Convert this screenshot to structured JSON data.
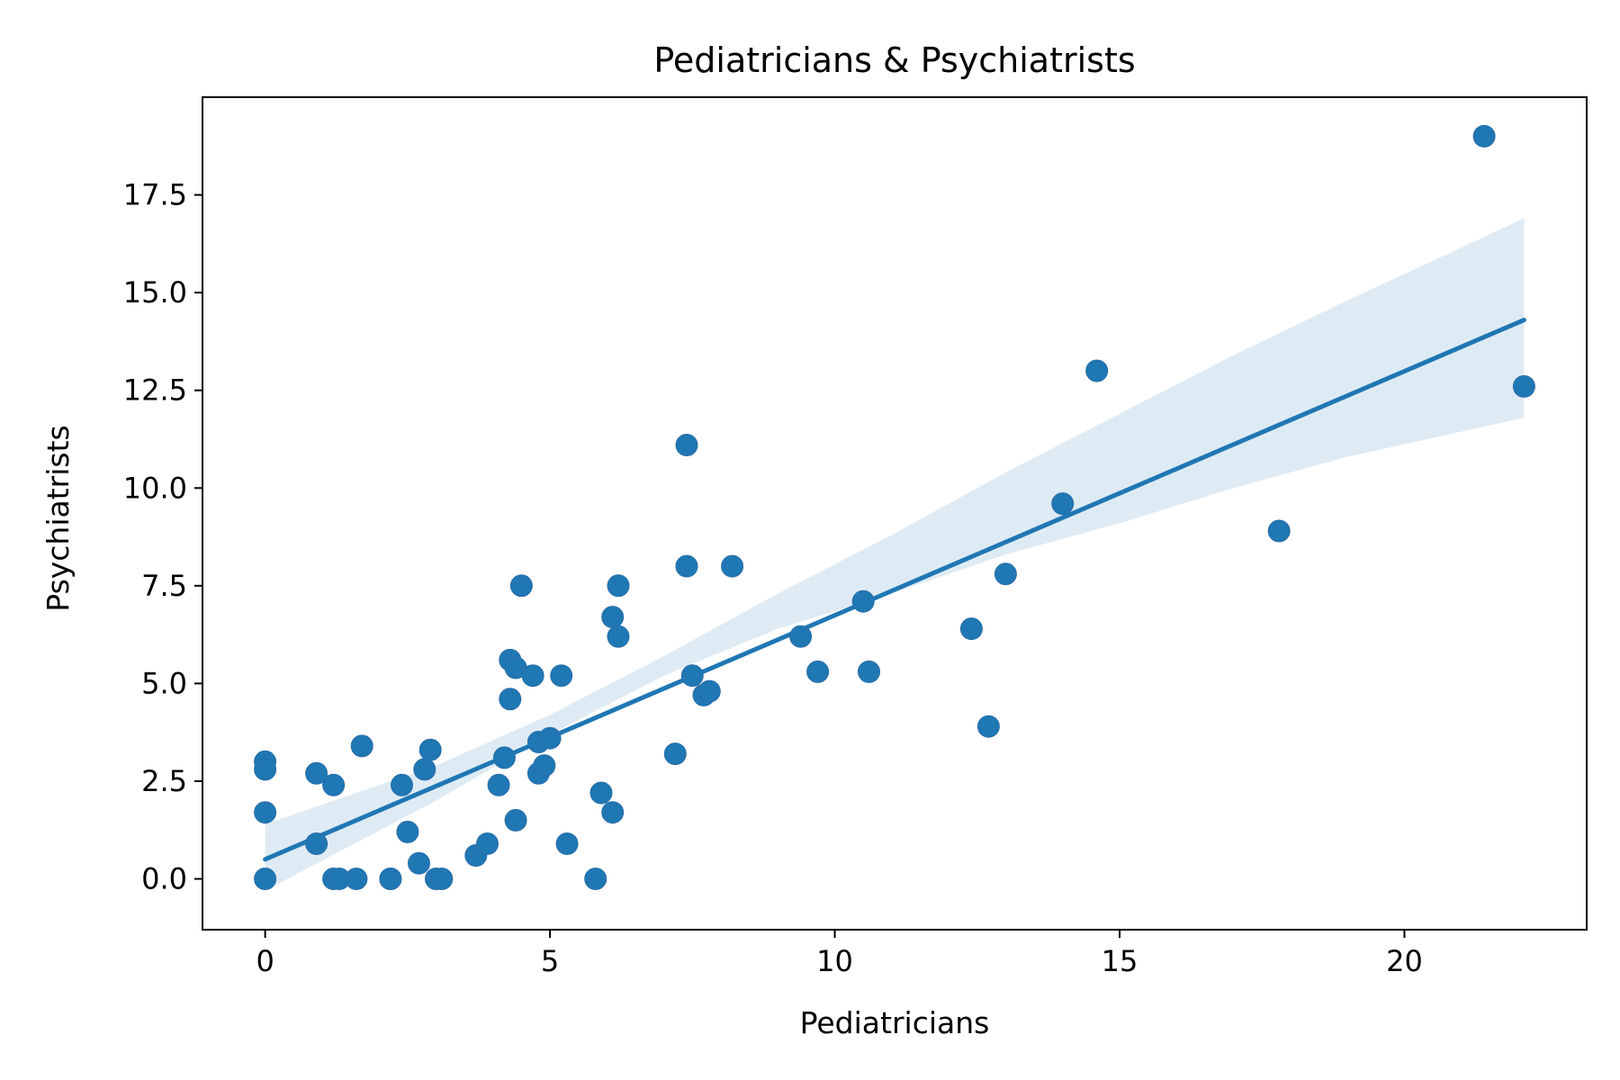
{
  "chart_data": {
    "type": "scatter",
    "title": "Pediatricians & Psychiatrists",
    "xlabel": "Pediatricians",
    "ylabel": "Psychiatrists",
    "xlim": [
      -1.1,
      23.2
    ],
    "ylim": [
      -1.3,
      20.0
    ],
    "xticks": [
      0,
      5,
      10,
      15,
      20
    ],
    "xtick_labels": [
      "0",
      "5",
      "10",
      "15",
      "20"
    ],
    "yticks": [
      0,
      2.5,
      5,
      7.5,
      10,
      12.5,
      15,
      17.5
    ],
    "ytick_labels": [
      "0.0",
      "2.5",
      "5.0",
      "7.5",
      "10.0",
      "12.5",
      "15.0",
      "17.5"
    ],
    "grid": false,
    "colors": {
      "points": "#1f77b4",
      "line": "#1f77b4",
      "band": "#1f77b4"
    },
    "points": [
      [
        0,
        3.0
      ],
      [
        0,
        2.8
      ],
      [
        0,
        1.7
      ],
      [
        0,
        0
      ],
      [
        0.9,
        2.7
      ],
      [
        0.9,
        0.9
      ],
      [
        1.2,
        2.4
      ],
      [
        1.2,
        0
      ],
      [
        1.3,
        0
      ],
      [
        1.6,
        0
      ],
      [
        1.7,
        3.4
      ],
      [
        2.2,
        0
      ],
      [
        2.2,
        0
      ],
      [
        2.4,
        2.4
      ],
      [
        2.5,
        1.2
      ],
      [
        2.7,
        0.4
      ],
      [
        2.8,
        2.8
      ],
      [
        2.9,
        3.3
      ],
      [
        3.0,
        0
      ],
      [
        3.1,
        0
      ],
      [
        3.7,
        0.6
      ],
      [
        3.9,
        0.9
      ],
      [
        4.1,
        2.4
      ],
      [
        4.2,
        3.1
      ],
      [
        4.3,
        5.6
      ],
      [
        4.3,
        4.6
      ],
      [
        4.4,
        5.4
      ],
      [
        4.4,
        1.5
      ],
      [
        4.5,
        7.5
      ],
      [
        4.7,
        5.2
      ],
      [
        4.8,
        3.5
      ],
      [
        4.8,
        2.7
      ],
      [
        4.9,
        2.9
      ],
      [
        5.0,
        3.6
      ],
      [
        5.2,
        5.2
      ],
      [
        5.3,
        0.9
      ],
      [
        5.8,
        0
      ],
      [
        5.9,
        2.2
      ],
      [
        6.1,
        6.7
      ],
      [
        6.1,
        1.7
      ],
      [
        6.2,
        7.5
      ],
      [
        6.2,
        6.2
      ],
      [
        7.2,
        3.2
      ],
      [
        7.4,
        11.1
      ],
      [
        7.4,
        8.0
      ],
      [
        7.5,
        5.2
      ],
      [
        7.7,
        4.7
      ],
      [
        7.8,
        4.8
      ],
      [
        8.2,
        8.0
      ],
      [
        9.4,
        6.2
      ],
      [
        9.7,
        5.3
      ],
      [
        10.5,
        7.1
      ],
      [
        10.6,
        5.3
      ],
      [
        12.4,
        6.4
      ],
      [
        12.7,
        3.9
      ],
      [
        13.0,
        7.8
      ],
      [
        14.0,
        9.6
      ],
      [
        14.6,
        13.0
      ],
      [
        17.8,
        8.9
      ],
      [
        21.4,
        19.0
      ],
      [
        22.1,
        12.6
      ]
    ],
    "regression_line": {
      "x": [
        0,
        22.1
      ],
      "y": [
        0.5,
        14.3
      ]
    },
    "confidence_band": {
      "x": [
        0,
        3,
        5,
        7,
        9,
        11,
        13,
        15,
        17,
        19,
        22.1
      ],
      "lower": [
        -0.3,
        2.0,
        3.7,
        5.2,
        6.4,
        7.3,
        8.3,
        9.1,
        10.0,
        10.8,
        11.8
      ],
      "upper": [
        1.4,
        2.9,
        4.2,
        5.7,
        7.3,
        8.8,
        10.4,
        11.9,
        13.4,
        14.8,
        16.9
      ]
    }
  }
}
